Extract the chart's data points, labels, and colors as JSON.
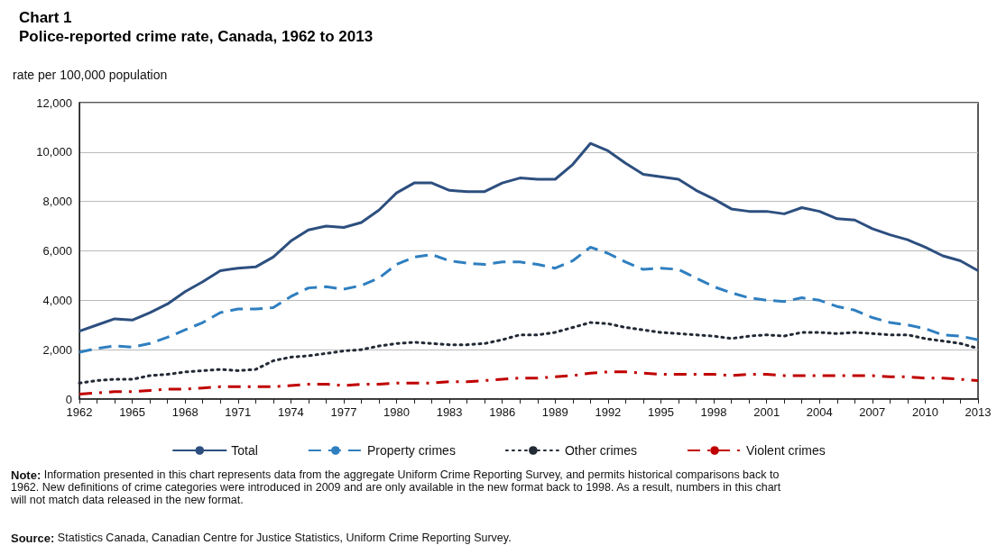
{
  "chart_data": {
    "type": "line",
    "title": "Chart 1",
    "subtitle": "Police-reported crime rate, Canada, 1962 to 2013",
    "ylabel": "rate per 100,000 population",
    "categories": [
      "1962",
      null,
      null,
      "1965",
      null,
      null,
      "1968",
      null,
      null,
      "1971",
      null,
      null,
      "1974",
      null,
      null,
      "1977",
      null,
      null,
      "1980",
      null,
      null,
      "1983",
      null,
      null,
      "1986",
      null,
      null,
      "1989",
      null,
      null,
      "1992",
      null,
      null,
      "1995",
      null,
      null,
      "1998",
      null,
      null,
      "2001",
      null,
      null,
      "2004",
      null,
      null,
      "2007",
      null,
      null,
      "2010",
      null,
      null,
      "2013"
    ],
    "series": [
      {
        "name": "Total",
        "color": "#2d4f7f",
        "line_style": "solid",
        "values": [
          2750,
          3000,
          3250,
          3200,
          3500,
          3850,
          4350,
          4750,
          5200,
          5300,
          5350,
          5750,
          6400,
          6850,
          7000,
          6950,
          7150,
          7650,
          8350,
          8750,
          8750,
          8450,
          8400,
          8400,
          8750,
          8950,
          8900,
          8900,
          9500,
          10350,
          10050,
          9550,
          9100,
          9000,
          8900,
          8450,
          8100,
          7700,
          7600,
          7600,
          7500,
          7750,
          7600,
          7300,
          7250,
          6900,
          6650,
          6450,
          6150,
          5800,
          5600,
          5200
        ]
      },
      {
        "name": "Property crimes",
        "color": "#2f7fc0",
        "line_style": "dashed",
        "values": [
          1900,
          2050,
          2150,
          2100,
          2250,
          2500,
          2800,
          3100,
          3500,
          3650,
          3650,
          3700,
          4150,
          4500,
          4550,
          4450,
          4600,
          4900,
          5450,
          5750,
          5850,
          5600,
          5500,
          5450,
          5550,
          5550,
          5450,
          5300,
          5600,
          6150,
          5900,
          5550,
          5250,
          5300,
          5250,
          4900,
          4550,
          4300,
          4100,
          4000,
          3950,
          4100,
          4000,
          3750,
          3600,
          3300,
          3100,
          3000,
          2850,
          2600,
          2550,
          2400
        ]
      },
      {
        "name": "Other crimes",
        "color": "#222a35",
        "line_style": "dotted",
        "values": [
          650,
          750,
          800,
          800,
          950,
          1000,
          1100,
          1150,
          1200,
          1150,
          1200,
          1550,
          1700,
          1750,
          1850,
          1950,
          2000,
          2150,
          2250,
          2300,
          2250,
          2200,
          2200,
          2250,
          2400,
          2600,
          2600,
          2700,
          2900,
          3100,
          3050,
          2900,
          2800,
          2700,
          2650,
          2600,
          2550,
          2450,
          2550,
          2600,
          2550,
          2700,
          2700,
          2650,
          2700,
          2650,
          2600,
          2600,
          2450,
          2350,
          2250,
          2050
        ]
      },
      {
        "name": "Violent crimes",
        "color": "#c00000",
        "line_style": "dashdot",
        "values": [
          200,
          250,
          300,
          300,
          350,
          400,
          400,
          450,
          500,
          500,
          500,
          500,
          550,
          600,
          600,
          550,
          600,
          600,
          650,
          650,
          650,
          700,
          700,
          750,
          800,
          850,
          850,
          900,
          950,
          1050,
          1100,
          1100,
          1050,
          1000,
          1000,
          1000,
          1000,
          950,
          1000,
          1000,
          950,
          950,
          950,
          950,
          950,
          950,
          900,
          900,
          850,
          850,
          800,
          750
        ]
      }
    ],
    "ylim": [
      0,
      12000
    ],
    "yticks": [
      0,
      {
        "value": 2000,
        "label": "2,000"
      },
      {
        "value": 4000,
        "label": "4,000"
      },
      {
        "value": 6000,
        "label": "6,000"
      },
      {
        "value": 8000,
        "label": "8,000"
      },
      {
        "value": 10000,
        "label": "10,000"
      },
      {
        "value": 12000,
        "label": "12,000"
      }
    ],
    "grid": "y",
    "legend": "bottom",
    "marker": "none",
    "annotations": [
      "Note: Information presented in this chart represents data from the aggregate Uniform Crime Reporting Survey, and permits historical comparisons back to 1962. New definitions of crime categories were introduced in 2009 and are only available in the new format back to 1998. As a result, numbers in this chart will not match data released in the new format.",
      "Source: Statistics Canada, Canadian Centre for Justice Statistics, Uniform Crime Reporting Survey."
    ]
  }
}
